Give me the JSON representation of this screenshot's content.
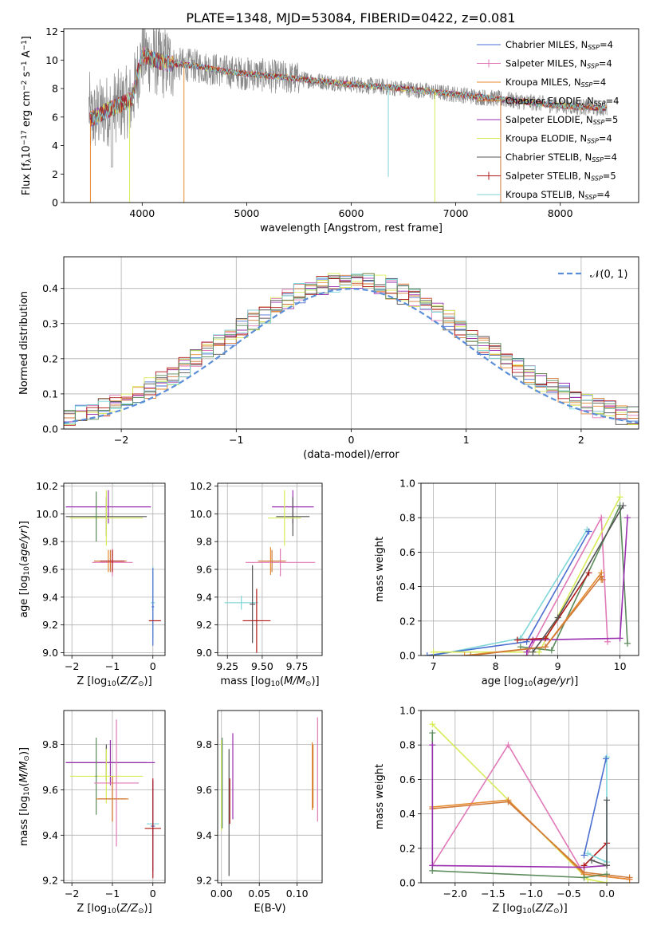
{
  "figure_title": "PLATE=1348, MJD=53084, FIBERID=0422, z=0.081",
  "colors": {
    "Chabrier MILES": "#4a6fd0",
    "Salpeter MILES": "#e07ab8",
    "Kroupa MILES": "#e58a2e",
    "Chabrier ELODIE": "#d07a3a",
    "Salpeter ELODIE": "#9a2fb0",
    "Kroupa ELODIE": "#d8ec5a",
    "Chabrier STELIB": "#555555",
    "Salpeter STELIB": "#b01818",
    "Kroupa STELIB": "#7fd6d8",
    "Gaussian": "#5b8ed8",
    "Data": "#888888",
    "Green": "#5a8a5a"
  },
  "chart_data": [
    {
      "id": "spectrum",
      "type": "line",
      "xlabel": "wavelength [Angstrom, rest frame]",
      "ylabel": "Flux [f",
      "xlim": [
        3250,
        8750
      ],
      "ylim": [
        0,
        12.2
      ],
      "xticks": [
        4000,
        5000,
        6000,
        7000,
        8000
      ],
      "yticks": [
        0,
        2,
        4,
        6,
        8,
        10,
        12
      ],
      "legend_position": "upper right",
      "legend": [
        {
          "base": "Chabrier MILES, N",
          "n": "4"
        },
        {
          "base": "Salpeter MILES, N",
          "n": "4"
        },
        {
          "base": "Kroupa MILES, N",
          "n": "4"
        },
        {
          "base": "Chabrier ELODIE, N",
          "n": "4"
        },
        {
          "base": "Salpeter ELODIE, N",
          "n": "5"
        },
        {
          "base": "Kroupa ELODIE, N",
          "n": "4"
        },
        {
          "base": "Chabrier STELIB, N",
          "n": "4"
        },
        {
          "base": "Salpeter STELIB, N",
          "n": "5"
        },
        {
          "base": "Kroupa STELIB, N",
          "n": "4"
        }
      ],
      "approx_continuum": [
        [
          3500,
          5.8
        ],
        [
          3700,
          6.6
        ],
        [
          3900,
          7.2
        ],
        [
          4000,
          10.4
        ],
        [
          4200,
          9.8
        ],
        [
          4500,
          9.6
        ],
        [
          4800,
          9.2
        ],
        [
          5200,
          8.9
        ],
        [
          5600,
          8.6
        ],
        [
          6000,
          8.3
        ],
        [
          6500,
          8.0
        ],
        [
          7000,
          7.6
        ],
        [
          7500,
          7.2
        ],
        [
          8000,
          6.8
        ],
        [
          8450,
          6.6
        ]
      ]
    },
    {
      "id": "residuals",
      "type": "step",
      "xlabel": "(data-model)/error",
      "ylabel": "Normed distribution",
      "xlim": [
        -2.5,
        2.5
      ],
      "ylim": [
        0,
        0.49
      ],
      "xticks": [
        -2,
        -1,
        0,
        1,
        2
      ],
      "yticks": [
        0.0,
        0.1,
        0.2,
        0.3,
        0.4
      ],
      "legend_label": "𝒩(0, 1)",
      "bin_width": 0.1,
      "bin_start": -2.5
    },
    {
      "id": "age_vs_Z",
      "type": "errorbar",
      "xlabel": "Z [log",
      "ylabel": "age  [log",
      "xlim": [
        -2.2,
        0.3
      ],
      "ylim": [
        8.98,
        10.22
      ],
      "xticks": [
        -2,
        -1,
        0
      ],
      "yticks": [
        9.0,
        9.2,
        9.4,
        9.6,
        9.8,
        10.0,
        10.2
      ],
      "points": [
        {
          "c": "Salpeter ELODIE",
          "x": -1.1,
          "y": 10.05,
          "xe": 1.05,
          "ye": 0.12
        },
        {
          "c": "Chabrier STELIB",
          "x": -1.15,
          "y": 9.98,
          "xe": 1.0,
          "ye": 0.14
        },
        {
          "c": "Kroupa ELODIE",
          "x": -1.15,
          "y": 9.97,
          "xe": 0.9,
          "ye": 0.2
        },
        {
          "c": "Green",
          "x": -1.4,
          "y": 9.98,
          "xe": 0.05,
          "ye": 0.18
        },
        {
          "c": "Salpeter MILES",
          "x": -1.0,
          "y": 9.65,
          "xe": 0.5,
          "ye": 0.1
        },
        {
          "c": "Kroupa MILES",
          "x": -1.1,
          "y": 9.66,
          "xe": 0.35,
          "ye": 0.08
        },
        {
          "c": "Chabrier ELODIE",
          "x": -1.05,
          "y": 9.66,
          "xe": 0.4,
          "ye": 0.08
        },
        {
          "c": "Salpeter STELIB",
          "x": -1.0,
          "y": 9.66,
          "xe": 0.3,
          "ye": 0.08
        },
        {
          "c": "Kroupa STELIB",
          "x": 0.0,
          "y": 9.36,
          "xe": 0.05,
          "ye": 0.26
        },
        {
          "c": "Chabrier MILES",
          "x": 0.0,
          "y": 9.33,
          "xe": 0.03,
          "ye": 0.28
        },
        {
          "c": "Salpeter STELIB",
          "x": 0.05,
          "y": 9.23,
          "xe": 0.15,
          "ye": 0.0
        }
      ]
    },
    {
      "id": "age_vs_mass",
      "type": "errorbar",
      "xlabel": "mass [log",
      "ylabel": "",
      "xlim": [
        9.18,
        9.93
      ],
      "ylim": [
        8.98,
        10.22
      ],
      "xticks": [
        9.25,
        9.5,
        9.75
      ],
      "yticks": [
        9.0,
        9.2,
        9.4,
        9.6,
        9.8,
        10.0,
        10.2
      ],
      "points": [
        {
          "c": "Salpeter ELODIE",
          "x": 9.72,
          "y": 10.05,
          "xe": 0.15,
          "ye": 0.12
        },
        {
          "c": "Chabrier STELIB",
          "x": 9.72,
          "y": 9.98,
          "xe": 0.12,
          "ye": 0.14
        },
        {
          "c": "Kroupa ELODIE",
          "x": 9.66,
          "y": 9.97,
          "xe": 0.12,
          "ye": 0.2
        },
        {
          "c": "Kroupa MILES",
          "x": 9.56,
          "y": 9.66,
          "xe": 0.06,
          "ye": 0.1
        },
        {
          "c": "Salpeter MILES",
          "x": 9.63,
          "y": 9.65,
          "xe": 0.25,
          "ye": 0.1
        },
        {
          "c": "Chabrier ELODIE",
          "x": 9.57,
          "y": 9.66,
          "xe": 0.1,
          "ye": 0.08
        },
        {
          "c": "Kroupa STELIB",
          "x": 9.35,
          "y": 9.36,
          "xe": 0.12,
          "ye": 0.05
        },
        {
          "c": "Chabrier STELIB",
          "x": 9.43,
          "y": 9.35,
          "xe": 0.02,
          "ye": 0.28
        },
        {
          "c": "Salpeter STELIB",
          "x": 9.46,
          "y": 9.23,
          "xe": 0.1,
          "ye": 0.23
        }
      ]
    },
    {
      "id": "mw_vs_age",
      "type": "line",
      "xlabel": "age  [log",
      "ylabel": "mass weight",
      "xlim": [
        6.8,
        10.3
      ],
      "ylim": [
        0,
        1.0
      ],
      "xticks": [
        7,
        8,
        9,
        10
      ],
      "yticks": [
        0.0,
        0.2,
        0.4,
        0.6,
        0.8,
        1.0
      ],
      "series": [
        {
          "c": "Kroupa STELIB",
          "x": [
            7.0,
            8.4,
            9.47
          ],
          "y": [
            0.0,
            0.1,
            0.73
          ]
        },
        {
          "c": "Chabrier MILES",
          "x": [
            6.9,
            8.5,
            9.5
          ],
          "y": [
            0.0,
            0.08,
            0.72
          ]
        },
        {
          "c": "Salpeter MILES",
          "x": [
            8.5,
            9.7,
            9.8
          ],
          "y": [
            0.0,
            0.8,
            0.08
          ]
        },
        {
          "c": "Kroupa ELODIE",
          "x": [
            7.0,
            8.7,
            10.0
          ],
          "y": [
            0.02,
            0.02,
            0.92
          ]
        },
        {
          "c": "Green",
          "x": [
            8.4,
            8.9,
            10.0,
            10.12
          ],
          "y": [
            0.05,
            0.03,
            0.87,
            0.07
          ]
        },
        {
          "c": "Salpeter ELODIE",
          "x": [
            8.5,
            8.6,
            10.0,
            10.12
          ],
          "y": [
            0.02,
            0.09,
            0.1,
            0.8
          ]
        },
        {
          "c": "Salpeter STELIB",
          "x": [
            8.35,
            8.8,
            9.5
          ],
          "y": [
            0.09,
            0.1,
            0.48
          ]
        },
        {
          "c": "Kroupa MILES",
          "x": [
            7.5,
            8.8,
            9.7,
            9.7
          ],
          "y": [
            0.0,
            0.05,
            0.48,
            0.44
          ]
        },
        {
          "c": "Chabrier ELODIE",
          "x": [
            7.6,
            8.8,
            9.7,
            9.72
          ],
          "y": [
            0.0,
            0.05,
            0.46,
            0.44
          ]
        },
        {
          "c": "Chabrier STELIB",
          "x": [
            8.6,
            9.0,
            10.05
          ],
          "y": [
            0.02,
            0.22,
            0.87
          ]
        }
      ]
    },
    {
      "id": "mass_vs_Z",
      "type": "errorbar",
      "xlabel": "Z [log",
      "ylabel": "mass [log",
      "xlim": [
        -2.2,
        0.3
      ],
      "ylim": [
        9.19,
        9.95
      ],
      "xticks": [
        -2,
        -1,
        0
      ],
      "yticks": [
        9.2,
        9.4,
        9.6,
        9.8
      ],
      "points": [
        {
          "c": "Chabrier STELIB",
          "x": -1.15,
          "y": 9.72,
          "xe": 1.0,
          "ye": 0.08
        },
        {
          "c": "Salpeter ELODIE",
          "x": -1.05,
          "y": 9.72,
          "xe": 1.1,
          "ye": 0.1
        },
        {
          "c": "Kroupa ELODIE",
          "x": -1.15,
          "y": 9.66,
          "xe": 0.9,
          "ye": 0.12
        },
        {
          "c": "Green",
          "x": -1.4,
          "y": 9.66,
          "xe": 0.02,
          "ye": 0.17
        },
        {
          "c": "Salpeter MILES",
          "x": -0.9,
          "y": 9.63,
          "xe": 0.55,
          "ye": 0.28
        },
        {
          "c": "Kroupa MILES",
          "x": -1.0,
          "y": 9.56,
          "xe": 0.4,
          "ye": 0.1
        },
        {
          "c": "Chabrier ELODIE",
          "x": -1.0,
          "y": 9.56,
          "xe": 0.35,
          "ye": 0.1
        },
        {
          "c": "Kroupa STELIB",
          "x": 0.0,
          "y": 9.45,
          "xe": 0.15,
          "ye": 0.12
        },
        {
          "c": "Chabrier MILES",
          "x": 0.0,
          "y": 9.44,
          "xe": 0.05,
          "ye": 0.2
        },
        {
          "c": "Salpeter STELIB",
          "x": 0.0,
          "y": 9.43,
          "xe": 0.2,
          "ye": 0.22
        }
      ]
    },
    {
      "id": "mass_vs_EBV",
      "type": "errorbar",
      "xlabel": "E(B-V)",
      "ylabel": "",
      "xlim": [
        -0.005,
        0.133
      ],
      "ylim": [
        9.19,
        9.95
      ],
      "xticks": [
        0.0,
        0.05,
        0.1
      ],
      "yticks": [
        9.2,
        9.4,
        9.6,
        9.8
      ],
      "points": [
        {
          "c": "Kroupa ELODIE",
          "x": 0.0,
          "y": 9.62,
          "xe": 0,
          "ye": 0.2
        },
        {
          "c": "Green",
          "x": 0.001,
          "y": 9.63,
          "xe": 0,
          "ye": 0.2
        },
        {
          "c": "Chabrier STELIB",
          "x": 0.01,
          "y": 9.5,
          "xe": 0,
          "ye": 0.28
        },
        {
          "c": "Salpeter STELIB",
          "x": 0.011,
          "y": 9.55,
          "xe": 0,
          "ye": 0.1
        },
        {
          "c": "Salpeter ELODIE",
          "x": 0.015,
          "y": 9.66,
          "xe": 0,
          "ye": 0.19
        },
        {
          "c": "Kroupa MILES",
          "x": 0.12,
          "y": 9.66,
          "xe": 0,
          "ye": 0.15
        },
        {
          "c": "Chabrier ELODIE",
          "x": 0.121,
          "y": 9.66,
          "xe": 0,
          "ye": 0.14
        },
        {
          "c": "Salpeter MILES",
          "x": 0.127,
          "y": 9.69,
          "xe": 0,
          "ye": 0.23
        }
      ]
    },
    {
      "id": "mw_vs_Z",
      "type": "line",
      "xlabel": "Z [log",
      "ylabel": "mass weight",
      "xlim": [
        -2.45,
        0.42
      ],
      "ylim": [
        0,
        1.0
      ],
      "xticks": [
        -2.0,
        -1.5,
        -1.0,
        -0.5,
        0.0
      ],
      "yticks": [
        0.0,
        0.2,
        0.4,
        0.6,
        0.8,
        1.0
      ],
      "series": [
        {
          "c": "Kroupa ELODIE",
          "x": [
            -2.3,
            -0.25,
            0.0
          ],
          "y": [
            0.92,
            0.02,
            0.0
          ]
        },
        {
          "c": "Salpeter MILES",
          "x": [
            -2.3,
            -1.3,
            -0.3,
            0.3
          ],
          "y": [
            0.1,
            0.8,
            0.05,
            0.02
          ]
        },
        {
          "c": "Kroupa MILES",
          "x": [
            -2.3,
            -1.3,
            -0.3,
            0.3
          ],
          "y": [
            0.44,
            0.48,
            0.05,
            0.02
          ]
        },
        {
          "c": "Chabrier ELODIE",
          "x": [
            -2.3,
            -1.3,
            -0.3,
            0.3
          ],
          "y": [
            0.43,
            0.47,
            0.06,
            0.03
          ]
        },
        {
          "c": "Green",
          "x": [
            -2.3,
            -2.3,
            -0.3,
            0.0
          ],
          "y": [
            0.87,
            0.07,
            0.03,
            0.05
          ]
        },
        {
          "c": "Salpeter ELODIE",
          "x": [
            -2.3,
            -2.3,
            -0.3,
            0.0
          ],
          "y": [
            0.8,
            0.1,
            0.09,
            0.1
          ]
        },
        {
          "c": "Salpeter STELIB",
          "x": [
            -0.3,
            0.0
          ],
          "y": [
            0.1,
            0.23
          ]
        },
        {
          "c": "Kroupa STELIB",
          "x": [
            -0.25,
            0.0,
            0.0
          ],
          "y": [
            0.17,
            0.12,
            0.73
          ]
        },
        {
          "c": "Chabrier MILES",
          "x": [
            -0.3,
            -0.01
          ],
          "y": [
            0.16,
            0.72
          ]
        },
        {
          "c": "Chabrier STELIB",
          "x": [
            -0.2,
            0.0,
            0.0
          ],
          "y": [
            0.13,
            0.1,
            0.48
          ]
        }
      ]
    }
  ]
}
